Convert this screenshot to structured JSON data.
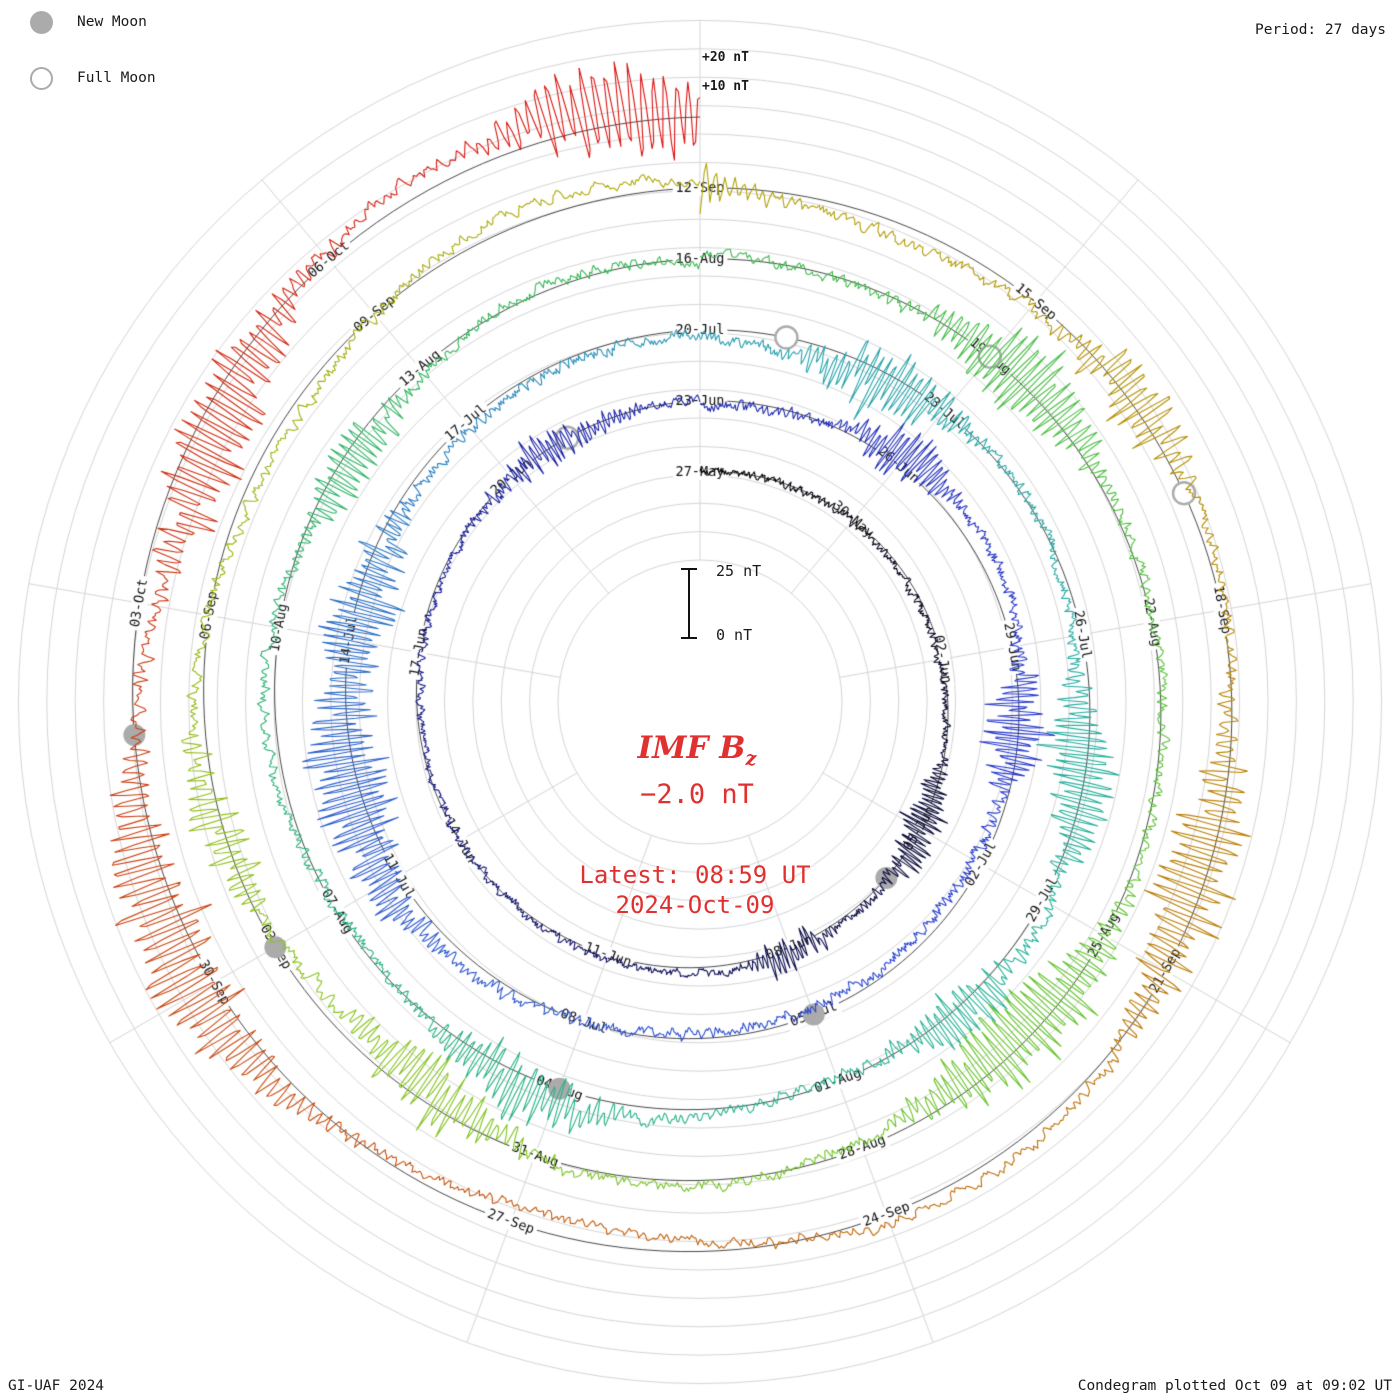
{
  "legend": {
    "new_moon_label": "New Moon",
    "full_moon_label": "Full Moon"
  },
  "header": {
    "period_label": "Period: 27 days"
  },
  "footer": {
    "credit": "GI-UAF 2024",
    "plotted": "Condegram plotted Oct 09 at 09:02 UT"
  },
  "center": {
    "title_main": "IMF B",
    "title_sub": "z",
    "current_value": "−2.0 nT",
    "latest_time": "Latest: 08:59 UT",
    "latest_date": "2024-Oct-09"
  },
  "scale": {
    "outer_top": "+20 nT",
    "inner_top": "+10 nT",
    "bar_max": "25 nT",
    "bar_min": "0 nT"
  },
  "colors": {
    "accent_red": "#e03030",
    "grid": "#d6d6d6",
    "baseline": "#333333",
    "moon_gray": "#ababab",
    "text": "#111111"
  },
  "chart_data": {
    "type": "line",
    "subtype": "condegram-polar-spiral",
    "title": "IMF Bz condegram",
    "period_days": 27,
    "start_date": "2024-05-27",
    "end_date": "2024-10-09",
    "latest_value_nT": -2.0,
    "latest_time_ut": "08:59",
    "radial_scale": {
      "nT_per_ring": 25,
      "grid_nT": 10
    },
    "label_angle_step_deg": 40,
    "grid": {
      "radial_lines": 9,
      "circle_count": 20
    },
    "rings": [
      {
        "start_date_label": "27-May",
        "date_labels": [
          "27-May",
          "30-May",
          "02-Jun",
          "05-Jun",
          "08-Jun",
          "11-Jun",
          "14-Jun",
          "17-Jun",
          "20-Jun"
        ],
        "bursts": [
          {
            "angle": 120,
            "width": 8,
            "amp": 9
          },
          {
            "angle": 160,
            "width": 6,
            "amp": 7
          },
          {
            "angle": 330,
            "width": 10,
            "amp": 6
          }
        ]
      },
      {
        "start_date_label": "23-Jun",
        "date_labels": [
          "23-Jun",
          "26-Jun",
          "29-Jun",
          "02-Jul",
          "05-Jul",
          "08-Jul",
          "11-Jul",
          "14-Jul",
          "17-Jul"
        ],
        "bursts": [
          {
            "angle": 40,
            "width": 6,
            "amp": 8
          },
          {
            "angle": 95,
            "width": 7,
            "amp": 9
          },
          {
            "angle": 255,
            "width": 14,
            "amp": 12
          },
          {
            "angle": 285,
            "width": 10,
            "amp": 10
          }
        ]
      },
      {
        "start_date_label": "20-Jul",
        "date_labels": [
          "20-Jul",
          "23-Jul",
          "26-Jul",
          "29-Jul",
          "01-Aug",
          "04-Aug",
          "07-Aug",
          "10-Aug",
          "13-Aug"
        ],
        "bursts": [
          {
            "angle": 30,
            "width": 8,
            "amp": 10
          },
          {
            "angle": 100,
            "width": 8,
            "amp": 11
          },
          {
            "angle": 140,
            "width": 6,
            "amp": 9
          },
          {
            "angle": 205,
            "width": 8,
            "amp": 9
          },
          {
            "angle": 305,
            "width": 6,
            "amp": 8
          }
        ]
      },
      {
        "start_date_label": "16-Aug",
        "date_labels": [
          "16-Aug",
          "19-Aug",
          "22-Aug",
          "25-Aug",
          "28-Aug",
          "31-Aug",
          "03-Sep",
          "06-Sep",
          "09-Sep"
        ],
        "bursts": [
          {
            "angle": 45,
            "width": 8,
            "amp": 12
          },
          {
            "angle": 135,
            "width": 10,
            "amp": 13
          },
          {
            "angle": 215,
            "width": 8,
            "amp": 9
          },
          {
            "angle": 255,
            "width": 6,
            "amp": 8
          }
        ]
      },
      {
        "start_date_label": "12-Sep",
        "date_labels": [
          "12-Sep",
          "15-Sep",
          "18-Sep",
          "21-Sep",
          "24-Sep",
          "27-Sep",
          "30-Sep",
          "03-Oct",
          "06-Oct"
        ],
        "bursts": [
          {
            "angle": 55,
            "width": 6,
            "amp": 9
          },
          {
            "angle": 110,
            "width": 10,
            "amp": 12
          },
          {
            "angle": 245,
            "width": 12,
            "amp": 13
          },
          {
            "angle": 300,
            "width": 10,
            "amp": 12
          },
          {
            "angle": 352,
            "width": 7,
            "amp": 16
          }
        ]
      }
    ],
    "moon_events": {
      "new_moons": [
        {
          "date": "2024-06-06",
          "day": 10
        },
        {
          "date": "2024-07-05",
          "day": 39
        },
        {
          "date": "2024-08-04",
          "day": 69
        },
        {
          "date": "2024-09-03",
          "day": 99
        },
        {
          "date": "2024-10-02",
          "day": 128
        }
      ],
      "full_moons": [
        {
          "date": "2024-06-21",
          "day": 25
        },
        {
          "date": "2024-07-21",
          "day": 55
        },
        {
          "date": "2024-08-19",
          "day": 84
        },
        {
          "date": "2024-09-17",
          "day": 113
        }
      ]
    },
    "color_stops": [
      [
        0.0,
        "#000000"
      ],
      [
        0.08,
        "#0d0d45"
      ],
      [
        0.17,
        "#1a1f9e"
      ],
      [
        0.26,
        "#2b3ed2"
      ],
      [
        0.34,
        "#3060d0"
      ],
      [
        0.41,
        "#2aa4ae"
      ],
      [
        0.47,
        "#28b39b"
      ],
      [
        0.54,
        "#2bb37d"
      ],
      [
        0.6,
        "#3aba52"
      ],
      [
        0.66,
        "#5ec534"
      ],
      [
        0.73,
        "#8cc41e"
      ],
      [
        0.8,
        "#b3a609"
      ],
      [
        0.86,
        "#ba8107"
      ],
      [
        0.91,
        "#c65c11"
      ],
      [
        0.96,
        "#cd3414"
      ],
      [
        1.0,
        "#de1111"
      ]
    ]
  }
}
